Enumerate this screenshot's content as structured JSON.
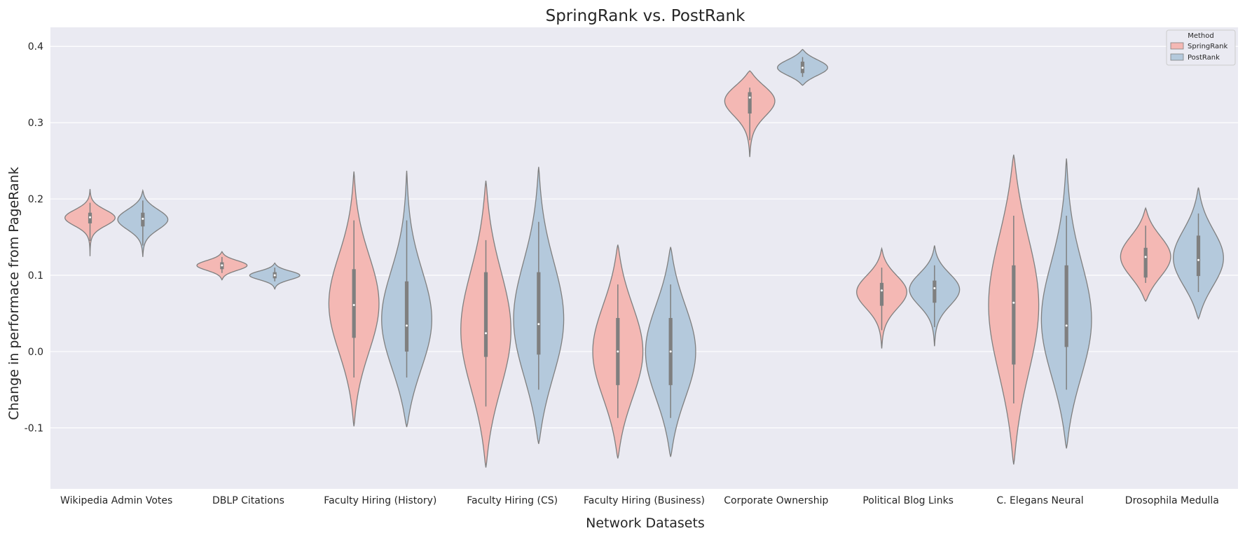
{
  "chart_data": {
    "type": "violin",
    "title": "SpringRank vs. PostRank",
    "xlabel": "Network Datasets",
    "ylabel": "Change in performace from PageRank",
    "ylim": [
      -0.18,
      0.425
    ],
    "yticks": [
      -0.1,
      0.0,
      0.1,
      0.2,
      0.3,
      0.4
    ],
    "grid": true,
    "legend": {
      "title": "Method",
      "placement": "top-right"
    },
    "categories": [
      "Wikipedia Admin Votes",
      "DBLP Citations",
      "Faculty Hiring (History)",
      "Faculty Hiring (CS)",
      "Faculty Hiring (Business)",
      "Corporate Ownership",
      "Political Blog Links",
      "C. Elegans Neural",
      "Drosophila Medulla"
    ],
    "series": [
      {
        "name": "SpringRank",
        "color": "#f4b8b4",
        "stats": [
          {
            "kde_min": 0.125,
            "kde_max": 0.213,
            "whisker_low": 0.145,
            "whisker_high": 0.195,
            "q1": 0.168,
            "median": 0.176,
            "q3": 0.182
          },
          {
            "kde_min": 0.094,
            "kde_max": 0.131,
            "whisker_low": 0.103,
            "whisker_high": 0.124,
            "q1": 0.108,
            "median": 0.113,
            "q3": 0.117
          },
          {
            "kde_min": -0.098,
            "kde_max": 0.236,
            "whisker_low": -0.034,
            "whisker_high": 0.172,
            "q1": 0.018,
            "median": 0.061,
            "q3": 0.108
          },
          {
            "kde_min": -0.152,
            "kde_max": 0.224,
            "whisker_low": -0.072,
            "whisker_high": 0.146,
            "q1": -0.007,
            "median": 0.024,
            "q3": 0.104
          },
          {
            "kde_min": -0.14,
            "kde_max": 0.14,
            "whisker_low": -0.087,
            "whisker_high": 0.088,
            "q1": -0.044,
            "median": 0.0,
            "q3": 0.044
          },
          {
            "kde_min": 0.255,
            "kde_max": 0.368,
            "whisker_low": 0.277,
            "whisker_high": 0.346,
            "q1": 0.312,
            "median": 0.333,
            "q3": 0.34
          },
          {
            "kde_min": 0.004,
            "kde_max": 0.135,
            "whisker_low": 0.028,
            "whisker_high": 0.11,
            "q1": 0.06,
            "median": 0.08,
            "q3": 0.09
          },
          {
            "kde_min": -0.148,
            "kde_max": 0.258,
            "whisker_low": -0.068,
            "whisker_high": 0.178,
            "q1": -0.017,
            "median": 0.064,
            "q3": 0.113
          },
          {
            "kde_min": 0.066,
            "kde_max": 0.188,
            "whisker_low": 0.09,
            "whisker_high": 0.165,
            "q1": 0.097,
            "median": 0.124,
            "q3": 0.136
          }
        ]
      },
      {
        "name": "PostRank",
        "color": "#b4c9dc",
        "stats": [
          {
            "kde_min": 0.124,
            "kde_max": 0.211,
            "whisker_low": 0.139,
            "whisker_high": 0.198,
            "q1": 0.164,
            "median": 0.174,
            "q3": 0.182
          },
          {
            "kde_min": 0.082,
            "kde_max": 0.116,
            "whisker_low": 0.092,
            "whisker_high": 0.11,
            "q1": 0.096,
            "median": 0.1,
            "q3": 0.104
          },
          {
            "kde_min": -0.099,
            "kde_max": 0.237,
            "whisker_low": -0.034,
            "whisker_high": 0.172,
            "q1": 0.0,
            "median": 0.034,
            "q3": 0.092
          },
          {
            "kde_min": -0.121,
            "kde_max": 0.242,
            "whisker_low": -0.05,
            "whisker_high": 0.17,
            "q1": -0.004,
            "median": 0.036,
            "q3": 0.104
          },
          {
            "kde_min": -0.138,
            "kde_max": 0.137,
            "whisker_low": -0.087,
            "whisker_high": 0.088,
            "q1": -0.044,
            "median": 0.0,
            "q3": 0.044
          },
          {
            "kde_min": 0.349,
            "kde_max": 0.396,
            "whisker_low": 0.36,
            "whisker_high": 0.386,
            "q1": 0.365,
            "median": 0.372,
            "q3": 0.38
          },
          {
            "kde_min": 0.007,
            "kde_max": 0.139,
            "whisker_low": 0.032,
            "whisker_high": 0.113,
            "q1": 0.064,
            "median": 0.083,
            "q3": 0.093
          },
          {
            "kde_min": -0.127,
            "kde_max": 0.253,
            "whisker_low": -0.05,
            "whisker_high": 0.178,
            "q1": 0.006,
            "median": 0.034,
            "q3": 0.113
          },
          {
            "kde_min": 0.043,
            "kde_max": 0.215,
            "whisker_low": 0.078,
            "whisker_high": 0.181,
            "q1": 0.099,
            "median": 0.12,
            "q3": 0.152
          }
        ]
      }
    ]
  }
}
